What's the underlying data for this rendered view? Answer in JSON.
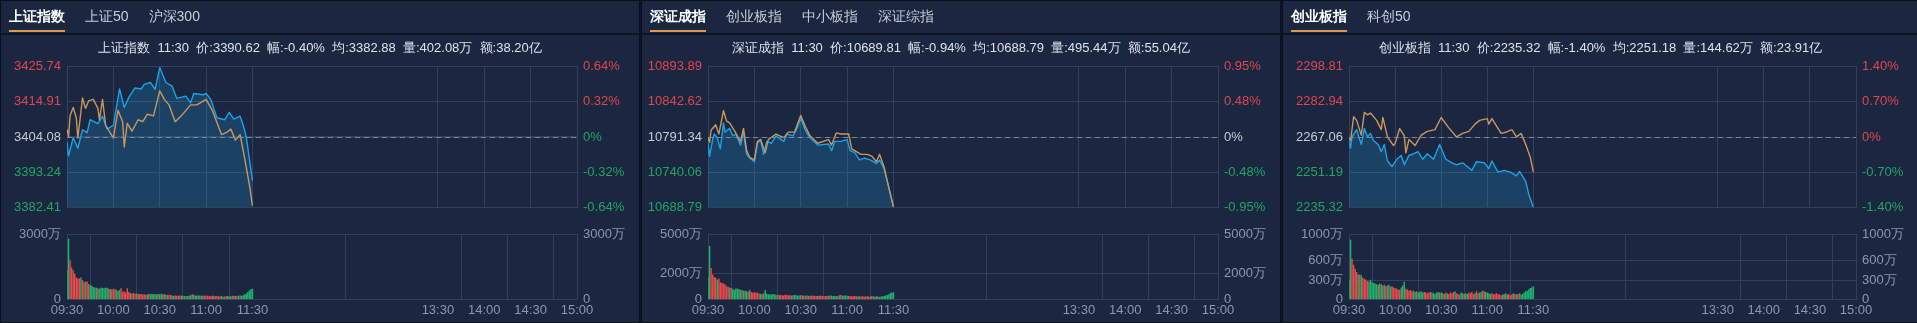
{
  "chart_data": [
    {
      "type": "other",
      "annotations": [
        "上证指数",
        "上证50",
        "沪深300"
      ]
    },
    {
      "type": "line",
      "title": "上证指数  11:30  价:3390.62  幅:-0.40%  均:3382.88  量:402.08万  额:38.20亿",
      "xlim": [
        9.5,
        15
      ],
      "xticks": [
        {
          "value": 9.5,
          "label": null
        },
        {
          "value": 10,
          "label": null
        },
        {
          "value": 10.5,
          "label": null
        },
        {
          "value": 11,
          "label": null
        },
        {
          "value": 11.5,
          "label": null
        },
        {
          "value": 13.5,
          "label": null
        },
        {
          "value": 14,
          "label": null
        },
        {
          "value": 14.5,
          "label": null
        },
        {
          "value": 15,
          "label": null
        }
      ],
      "ylim": [
        3382.41,
        3425.74
      ],
      "yticks": [
        3382.41,
        3393.24,
        3404.08,
        3414.91,
        3425.74
      ],
      "y2lim": [
        -0.64,
        0.64
      ],
      "y2ticks": [
        {
          "value": -0.64,
          "label": "-0.64%"
        },
        {
          "value": -0.32,
          "label": "-0.32%"
        },
        {
          "value": 0,
          "label": "0%"
        },
        {
          "value": 0.32,
          "label": "0.32%"
        },
        {
          "value": 0.64,
          "label": "0.64%"
        }
      ],
      "tick_labels": "y",
      "grid": true,
      "ref_lines": [
        {
          "axis": "y",
          "value": 3404.08,
          "color": "#7d8596",
          "line_style": "dashed"
        }
      ],
      "series": [
        {
          "type": "area",
          "color": "#1ba3e6",
          "x": [
            9.5,
            9.517,
            9.567,
            9.617,
            9.667,
            9.717,
            9.75,
            9.833,
            9.883,
            9.933,
            10,
            10.067,
            10.117,
            10.167,
            10.233,
            10.3,
            10.333,
            10.4,
            10.45,
            10.5,
            10.567,
            10.633,
            10.683,
            10.783,
            10.833,
            10.867,
            10.967,
            11,
            11.05,
            11.117,
            11.2,
            11.25,
            11.3,
            11.367,
            11.4,
            11.433,
            11.467,
            11.5
          ],
          "values": [
            3402.5,
            3398.3,
            3403.9,
            3400.6,
            3406.3,
            3405.4,
            3409.4,
            3408.2,
            3410.5,
            3406.5,
            3407.7,
            3418.9,
            3413.2,
            3416.3,
            3419.2,
            3418.9,
            3420.3,
            3420.9,
            3418.8,
            3425.5,
            3420.9,
            3419.8,
            3416.0,
            3416.7,
            3414.6,
            3417.5,
            3417.1,
            3417.5,
            3415.7,
            3410.0,
            3409.4,
            3411.7,
            3409.6,
            3410.5,
            3407.7,
            3404.2,
            3397.3,
            3390.62
          ]
        },
        {
          "type": "line",
          "color": "#c9975e",
          "x": [
            9.5,
            9.517,
            9.533,
            9.567,
            9.6,
            9.617,
            9.667,
            9.7,
            9.733,
            9.783,
            9.833,
            9.85,
            9.883,
            9.917,
            10,
            10.05,
            10.1,
            10.117,
            10.15,
            10.2,
            10.267,
            10.317,
            10.367,
            10.433,
            10.5,
            10.55,
            10.6,
            10.667,
            10.733,
            10.833,
            10.9,
            11,
            11.067,
            11.167,
            11.217,
            11.267,
            11.317,
            11.367,
            11.417,
            11.467,
            11.5
          ],
          "values": [
            3406.5,
            3404.2,
            3410.6,
            3413.2,
            3410.0,
            3403.7,
            3416.1,
            3412.9,
            3415.2,
            3415.7,
            3412.9,
            3409.4,
            3415.7,
            3407.7,
            3403.7,
            3412.3,
            3408.8,
            3401.0,
            3408.3,
            3405.9,
            3409.4,
            3408.8,
            3411.1,
            3410.6,
            3418.3,
            3415.7,
            3414.0,
            3408.8,
            3410.6,
            3414.0,
            3414.0,
            3415.7,
            3412.3,
            3404.8,
            3405.4,
            3406.5,
            3403.1,
            3404.8,
            3397.3,
            3389.3,
            3382.88
          ]
        }
      ]
    },
    {
      "type": "bar",
      "xlim": [
        9.5,
        15
      ],
      "xticks": [
        {
          "value": 9.5,
          "label": "09:30"
        },
        {
          "value": 10,
          "label": "10:00"
        },
        {
          "value": 10.5,
          "label": "10:30"
        },
        {
          "value": 11,
          "label": "11:00"
        },
        {
          "value": 11.5,
          "label": "11:30"
        },
        {
          "value": 13.5,
          "label": "13:30"
        },
        {
          "value": 14,
          "label": "14:00"
        },
        {
          "value": 14.5,
          "label": "14:30"
        },
        {
          "value": 15,
          "label": "15:00"
        }
      ],
      "ylim": [
        0,
        3000
      ],
      "yticks": [
        0,
        {
          "value": 3000,
          "label": "3000万"
        }
      ],
      "y2lim": [
        0,
        3000
      ],
      "y2ticks": [
        {
          "value": 0,
          "label": "0"
        },
        {
          "value": 3000,
          "label": "3000万"
        }
      ],
      "grid": true,
      "x": [
        9.5,
        9.517,
        9.533,
        9.55,
        9.567,
        9.583,
        9.6,
        9.617,
        9.633,
        9.65,
        9.667,
        9.683,
        9.7,
        9.717,
        9.733,
        9.75,
        9.767,
        9.783,
        9.8,
        9.817,
        9.833,
        9.85,
        9.867,
        9.883,
        9.9,
        9.917,
        9.933,
        9.95,
        9.967,
        9.983,
        10,
        10.017,
        10.033,
        10.05,
        10.067,
        10.083,
        10.1,
        10.117,
        10.133,
        10.15,
        10.167,
        10.183,
        10.2,
        10.217,
        10.233,
        10.25,
        10.267,
        10.283,
        10.3,
        10.317,
        10.333,
        10.35,
        10.367,
        10.383,
        10.4,
        10.417,
        10.433,
        10.45,
        10.467,
        10.483,
        10.5,
        10.517,
        10.533,
        10.55,
        10.567,
        10.583,
        10.6,
        10.617,
        10.633,
        10.65,
        10.667,
        10.683,
        10.7,
        10.717,
        10.733,
        10.75,
        10.767,
        10.783,
        10.8,
        10.817,
        10.833,
        10.85,
        10.867,
        10.883,
        10.9,
        10.917,
        10.933,
        10.95,
        10.967,
        10.983,
        11,
        11.017,
        11.033,
        11.05,
        11.067,
        11.083,
        11.1,
        11.117,
        11.133,
        11.15,
        11.167,
        11.183,
        11.2,
        11.217,
        11.233,
        11.25,
        11.267,
        11.283,
        11.3,
        11.317,
        11.333,
        11.35,
        11.367,
        11.383,
        11.4,
        11.417,
        11.433,
        11.45,
        11.467,
        11.483,
        11.5
      ],
      "values": [
        1340,
        2800,
        1800,
        1470,
        1340,
        1180,
        1000,
        950,
        950,
        1000,
        880,
        780,
        800,
        820,
        700,
        650,
        620,
        560,
        540,
        520,
        500,
        480,
        530,
        520,
        500,
        530,
        520,
        480,
        470,
        450,
        480,
        460,
        430,
        380,
        420,
        500,
        330,
        360,
        290,
        500,
        330,
        280,
        260,
        280,
        250,
        260,
        230,
        240,
        230,
        210,
        220,
        200,
        210,
        250,
        230,
        230,
        220,
        240,
        210,
        230,
        220,
        250,
        210,
        230,
        200,
        190,
        200,
        190,
        170,
        160,
        170,
        150,
        160,
        170,
        160,
        150,
        140,
        130,
        140,
        160,
        180,
        220,
        200,
        170,
        160,
        180,
        160,
        170,
        160,
        150,
        170,
        150,
        140,
        130,
        150,
        160,
        130,
        140,
        130,
        120,
        150,
        110,
        120,
        130,
        140,
        120,
        130,
        150,
        140,
        160,
        130,
        150,
        170,
        160,
        180,
        220,
        260,
        330,
        400,
        470,
        480
      ],
      "colors": [
        "#20b26c",
        "#20b26c",
        "#e84b4b",
        "#e84b4b",
        "#e84b4b",
        "#e84b4b",
        "#e84b4b",
        "#e84b4b",
        "#e84b4b",
        "#20b26c",
        "#e84b4b",
        "#e84b4b",
        "#20b26c",
        "#e84b4b",
        "#e84b4b",
        "#20b26c",
        "#20b26c",
        "#20b26c",
        "#20b26c",
        "#20b26c",
        "#e84b4b",
        "#20b26c",
        "#20b26c",
        "#20b26c",
        "#20b26c",
        "#20b26c",
        "#20b26c",
        "#e84b4b",
        "#20b26c",
        "#e84b4b",
        "#e84b4b",
        "#e84b4b",
        "#20b26c",
        "#20b26c",
        "#20b26c",
        "#e84b4b",
        "#e84b4b",
        "#e84b4b",
        "#e84b4b",
        "#e84b4b",
        "#e84b4b",
        "#e84b4b",
        "#20b26c",
        "#e84b4b",
        "#e84b4b",
        "#e84b4b",
        "#20b26c",
        "#e84b4b",
        "#e84b4b",
        "#e84b4b",
        "#e84b4b",
        "#e84b4b",
        "#20b26c",
        "#e84b4b",
        "#20b26c",
        "#20b26c",
        "#20b26c",
        "#20b26c",
        "#20b26c",
        "#e84b4b",
        "#20b26c",
        "#20b26c",
        "#e84b4b",
        "#20b26c",
        "#20b26c",
        "#e84b4b",
        "#e84b4b",
        "#e84b4b",
        "#20b26c",
        "#20b26c",
        "#e84b4b",
        "#e84b4b",
        "#e84b4b",
        "#e84b4b",
        "#20b26c",
        "#20b26c",
        "#e84b4b",
        "#20b26c",
        "#20b26c",
        "#20b26c",
        "#20b26c",
        "#e84b4b",
        "#20b26c",
        "#20b26c",
        "#20b26c",
        "#e84b4b",
        "#20b26c",
        "#20b26c",
        "#20b26c",
        "#e84b4b",
        "#e84b4b",
        "#e84b4b",
        "#e84b4b",
        "#e84b4b",
        "#e84b4b",
        "#20b26c",
        "#e84b4b",
        "#e84b4b",
        "#e84b4b",
        "#e84b4b",
        "#20b26c",
        "#20b26c",
        "#e84b4b",
        "#e84b4b",
        "#20b26c",
        "#20b26c",
        "#20b26c",
        "#e84b4b",
        "#e84b4b",
        "#20b26c",
        "#e84b4b",
        "#20b26c",
        "#e84b4b",
        "#20b26c",
        "#20b26c",
        "#20b26c",
        "#20b26c",
        "#20b26c",
        "#20b26c",
        "#20b26c",
        "#20b26c"
      ]
    },
    {
      "type": "other",
      "annotations": [
        "深证成指",
        "创业板指",
        "中小板指",
        "深证综指"
      ]
    },
    {
      "type": "line",
      "title": "深证成指  11:30  价:10689.81  幅:-0.94%  均:10688.79  量:495.44万  额:55.04亿",
      "xlim": [
        9.5,
        15
      ],
      "xticks": [
        {
          "value": 9.5,
          "label": null
        },
        {
          "value": 10,
          "label": null
        },
        {
          "value": 10.5,
          "label": null
        },
        {
          "value": 11,
          "label": null
        },
        {
          "value": 11.5,
          "label": null
        },
        {
          "value": 13.5,
          "label": null
        },
        {
          "value": 14,
          "label": null
        },
        {
          "value": 14.5,
          "label": null
        },
        {
          "value": 15,
          "label": null
        }
      ],
      "ylim": [
        10688.79,
        10893.89
      ],
      "yticks": [
        10688.79,
        10740.06,
        10791.34,
        10842.62,
        10893.89
      ],
      "y2lim": [
        -0.95,
        0.95
      ],
      "y2ticks": [
        {
          "value": -0.95,
          "label": "-0.95%"
        },
        {
          "value": -0.48,
          "label": "-0.48%"
        },
        {
          "value": 0,
          "label": "0%"
        },
        {
          "value": 0.48,
          "label": "0.48%"
        },
        {
          "value": 0.95,
          "label": "0.95%"
        }
      ],
      "tick_labels": "y",
      "grid": true,
      "ref_lines": [
        {
          "axis": "y",
          "value": 10791.34,
          "color": "#7d8596",
          "line_style": "dashed"
        }
      ],
      "series": [
        {
          "type": "area",
          "color": "#1ba3e6",
          "x": [
            9.5,
            9.517,
            9.55,
            9.567,
            9.6,
            9.633,
            9.667,
            9.683,
            9.733,
            9.767,
            9.8,
            9.85,
            9.883,
            9.917,
            9.95,
            10,
            10.033,
            10.067,
            10.1,
            10.133,
            10.183,
            10.233,
            10.317,
            10.35,
            10.417,
            10.467,
            10.5,
            10.55,
            10.6,
            10.683,
            10.8,
            10.833,
            10.867,
            10.933,
            11,
            11.033,
            11.083,
            11.133,
            11.183,
            11.25,
            11.317,
            11.35,
            11.4,
            11.45,
            11.5
          ],
          "values": [
            10782.2,
            10763.3,
            10787.6,
            10795.7,
            10790.3,
            10774.1,
            10811.9,
            10798.4,
            10804.0,
            10793.0,
            10795.7,
            10779.5,
            10798.4,
            10766.0,
            10760.6,
            10755.2,
            10782.2,
            10787.6,
            10766.0,
            10784.9,
            10782.2,
            10793.0,
            10784.9,
            10795.7,
            10793.0,
            10806.5,
            10818.9,
            10801.1,
            10790.3,
            10779.5,
            10781.1,
            10771.4,
            10784.9,
            10784.9,
            10787.6,
            10771.4,
            10768.7,
            10757.9,
            10760.6,
            10757.9,
            10752.5,
            10757.9,
            10744.4,
            10717.4,
            10689.81
          ]
        },
        {
          "type": "line",
          "color": "#c9975e",
          "x": [
            9.5,
            9.517,
            9.533,
            9.583,
            9.617,
            9.667,
            9.7,
            9.733,
            9.783,
            9.85,
            9.883,
            9.917,
            9.95,
            10,
            10.033,
            10.067,
            10.117,
            10.15,
            10.233,
            10.317,
            10.367,
            10.433,
            10.5,
            10.55,
            10.6,
            10.683,
            10.8,
            10.833,
            10.883,
            10.933,
            11.017,
            11.05,
            11.083,
            11.15,
            11.217,
            11.267,
            11.317,
            11.35,
            11.4,
            11.45,
            11.5
          ],
          "values": [
            10790.3,
            10783.3,
            10801.1,
            10809.2,
            10795.7,
            10829.7,
            10814.6,
            10811.9,
            10801.1,
            10784.9,
            10803.8,
            10771.4,
            10761.7,
            10757.9,
            10784.9,
            10787.6,
            10768.7,
            10787.6,
            10795.7,
            10790.3,
            10798.4,
            10798.4,
            10822.7,
            10806.5,
            10793.0,
            10782.2,
            10787.6,
            10779.5,
            10797.3,
            10795.7,
            10795.7,
            10774.1,
            10771.4,
            10766.0,
            10766.0,
            10763.3,
            10755.2,
            10766.0,
            10747.1,
            10717.4,
            10688.79
          ]
        }
      ]
    },
    {
      "type": "bar",
      "xlim": [
        9.5,
        15
      ],
      "xticks": [
        {
          "value": 9.5,
          "label": "09:30"
        },
        {
          "value": 10,
          "label": "10:00"
        },
        {
          "value": 10.5,
          "label": "10:30"
        },
        {
          "value": 11,
          "label": "11:00"
        },
        {
          "value": 11.5,
          "label": "11:30"
        },
        {
          "value": 13.5,
          "label": "13:30"
        },
        {
          "value": 14,
          "label": "14:00"
        },
        {
          "value": 14.5,
          "label": "14:30"
        },
        {
          "value": 15,
          "label": "15:00"
        }
      ],
      "ylim": [
        0,
        5000
      ],
      "yticks": [
        0,
        {
          "value": 2000,
          "label": "2000万"
        },
        {
          "value": 5000,
          "label": "5000万"
        }
      ],
      "y2lim": [
        0,
        5000
      ],
      "y2ticks": [
        {
          "value": 0,
          "label": "0"
        },
        {
          "value": 2000,
          "label": "2000万"
        },
        {
          "value": 5000,
          "label": "5000万"
        }
      ],
      "grid": true,
      "x": [
        9.5,
        9.517,
        9.533,
        9.55,
        9.567,
        9.583,
        9.6,
        9.617,
        9.633,
        9.65,
        9.667,
        9.683,
        9.7,
        9.717,
        9.733,
        9.75,
        9.767,
        9.783,
        9.8,
        9.817,
        9.833,
        9.85,
        9.867,
        9.883,
        9.9,
        9.917,
        9.933,
        9.95,
        9.967,
        9.983,
        10,
        10.017,
        10.033,
        10.05,
        10.067,
        10.083,
        10.1,
        10.117,
        10.133,
        10.15,
        10.167,
        10.183,
        10.2,
        10.217,
        10.233,
        10.25,
        10.267,
        10.283,
        10.3,
        10.317,
        10.333,
        10.35,
        10.367,
        10.383,
        10.4,
        10.417,
        10.433,
        10.45,
        10.467,
        10.483,
        10.5,
        10.517,
        10.533,
        10.55,
        10.567,
        10.583,
        10.6,
        10.617,
        10.633,
        10.65,
        10.667,
        10.683,
        10.7,
        10.717,
        10.733,
        10.75,
        10.767,
        10.783,
        10.8,
        10.817,
        10.833,
        10.85,
        10.867,
        10.883,
        10.9,
        10.917,
        10.933,
        10.95,
        10.967,
        10.983,
        11,
        11.017,
        11.033,
        11.05,
        11.067,
        11.083,
        11.1,
        11.117,
        11.133,
        11.15,
        11.167,
        11.183,
        11.2,
        11.217,
        11.233,
        11.25,
        11.267,
        11.283,
        11.3,
        11.317,
        11.333,
        11.35,
        11.367,
        11.383,
        11.4,
        11.417,
        11.433,
        11.45,
        11.467,
        11.483,
        11.5
      ],
      "values": [
        1700,
        4100,
        2400,
        1900,
        1700,
        1650,
        1500,
        1600,
        1300,
        1250,
        1200,
        1150,
        1000,
        950,
        900,
        850,
        800,
        700,
        820,
        800,
        780,
        720,
        700,
        650,
        640,
        600,
        560,
        700,
        540,
        480,
        520,
        500,
        480,
        440,
        420,
        380,
        450,
        700,
        420,
        380,
        350,
        360,
        400,
        380,
        320,
        340,
        300,
        320,
        300,
        280,
        330,
        320,
        300,
        290,
        280,
        300,
        310,
        290,
        280,
        270,
        300,
        290,
        260,
        280,
        270,
        250,
        240,
        280,
        260,
        250,
        240,
        230,
        260,
        250,
        230,
        220,
        240,
        230,
        260,
        270,
        250,
        240,
        230,
        220,
        240,
        300,
        320,
        280,
        260,
        300,
        260,
        240,
        230,
        220,
        210,
        230,
        220,
        200,
        210,
        190,
        220,
        200,
        190,
        210,
        200,
        180,
        230,
        200,
        190,
        210,
        190,
        180,
        200,
        220,
        240,
        280,
        320,
        380,
        450,
        500,
        520
      ],
      "colors": [
        "#20b26c",
        "#20b26c",
        "#e84b4b",
        "#e84b4b",
        "#e84b4b",
        "#e84b4b",
        "#20b26c",
        "#e84b4b",
        "#e84b4b",
        "#e84b4b",
        "#e84b4b",
        "#e84b4b",
        "#e84b4b",
        "#e84b4b",
        "#20b26c",
        "#e84b4b",
        "#20b26c",
        "#20b26c",
        "#20b26c",
        "#20b26c",
        "#20b26c",
        "#20b26c",
        "#e84b4b",
        "#20b26c",
        "#20b26c",
        "#20b26c",
        "#e84b4b",
        "#20b26c",
        "#e84b4b",
        "#e84b4b",
        "#e84b4b",
        "#e84b4b",
        "#e84b4b",
        "#e84b4b",
        "#20b26c",
        "#20b26c",
        "#e84b4b",
        "#20b26c",
        "#20b26c",
        "#20b26c",
        "#20b26c",
        "#20b26c",
        "#20b26c",
        "#20b26c",
        "#20b26c",
        "#e84b4b",
        "#20b26c",
        "#e84b4b",
        "#e84b4b",
        "#e84b4b",
        "#e84b4b",
        "#e84b4b",
        "#e84b4b",
        "#e84b4b",
        "#e84b4b",
        "#20b26c",
        "#20b26c",
        "#20b26c",
        "#20b26c",
        "#20b26c",
        "#e84b4b",
        "#20b26c",
        "#e84b4b",
        "#e84b4b",
        "#20b26c",
        "#20b26c",
        "#e84b4b",
        "#e84b4b",
        "#e84b4b",
        "#e84b4b",
        "#e84b4b",
        "#e84b4b",
        "#20b26c",
        "#e84b4b",
        "#e84b4b",
        "#e84b4b",
        "#e84b4b",
        "#e84b4b",
        "#20b26c",
        "#e84b4b",
        "#20b26c",
        "#20b26c",
        "#20b26c",
        "#20b26c",
        "#20b26c",
        "#e84b4b",
        "#e84b4b",
        "#20b26c",
        "#20b26c",
        "#20b26c",
        "#20b26c",
        "#e84b4b",
        "#e84b4b",
        "#e84b4b",
        "#e84b4b",
        "#e84b4b",
        "#e84b4b",
        "#20b26c",
        "#20b26c",
        "#e84b4b",
        "#e84b4b",
        "#e84b4b",
        "#20b26c",
        "#e84b4b",
        "#e84b4b",
        "#e84b4b",
        "#20b26c",
        "#e84b4b",
        "#20b26c",
        "#20b26c",
        "#20b26c",
        "#e84b4b",
        "#20b26c",
        "#20b26c",
        "#20b26c",
        "#20b26c",
        "#20b26c",
        "#20b26c",
        "#20b26c",
        "#20b26c",
        "#20b26c"
      ]
    },
    {
      "type": "other",
      "annotations": [
        "创业板指",
        "科创50"
      ]
    },
    {
      "type": "line",
      "title": "创业板指  11:30  价:2235.32  幅:-1.40%  均:2251.18  量:144.62万  额:23.91亿",
      "xlim": [
        9.5,
        15
      ],
      "xticks": [
        {
          "value": 9.5,
          "label": null
        },
        {
          "value": 10,
          "label": null
        },
        {
          "value": 10.5,
          "label": null
        },
        {
          "value": 11,
          "label": null
        },
        {
          "value": 11.5,
          "label": null
        },
        {
          "value": 13.5,
          "label": null
        },
        {
          "value": 14,
          "label": null
        },
        {
          "value": 14.5,
          "label": null
        },
        {
          "value": 15,
          "label": null
        }
      ],
      "ylim": [
        2235.32,
        2298.81
      ],
      "yticks": [
        2235.32,
        2251.19,
        2267.06,
        2282.94,
        2298.81
      ],
      "y2lim": [
        -1.4,
        1.4
      ],
      "y2ticks": [
        {
          "value": -1.4,
          "label": "-1.40%"
        },
        {
          "value": -0.7,
          "label": "-0.70%"
        },
        {
          "value": 0,
          "label": "0%"
        },
        {
          "value": 0.7,
          "label": "0.70%"
        },
        {
          "value": 1.4,
          "label": "1.40%"
        }
      ],
      "tick_labels": "y",
      "grid": true,
      "ref_lines": [
        {
          "axis": "y",
          "value": 2267.06,
          "color": "#7d8596",
          "line_style": "dashed"
        }
      ],
      "series": [
        {
          "type": "area",
          "color": "#1ba3e6",
          "x": [
            9.5,
            9.517,
            9.533,
            9.583,
            9.633,
            9.667,
            9.7,
            9.733,
            9.767,
            9.817,
            9.85,
            9.883,
            9.917,
            9.967,
            10.017,
            10.067,
            10.1,
            10.15,
            10.2,
            10.25,
            10.3,
            10.35,
            10.417,
            10.483,
            10.55,
            10.617,
            10.667,
            10.733,
            10.833,
            10.883,
            10.967,
            11.017,
            11.05,
            11.117,
            11.183,
            11.25,
            11.317,
            11.35,
            11.417,
            11.45,
            11.5
          ],
          "values": [
            2265.4,
            2262.0,
            2267.1,
            2270.4,
            2263.7,
            2270.9,
            2267.1,
            2268.7,
            2265.4,
            2263.7,
            2260.4,
            2263.7,
            2256.2,
            2253.7,
            2257.0,
            2258.7,
            2254.5,
            2258.7,
            2259.5,
            2260.4,
            2257.0,
            2259.5,
            2257.0,
            2263.7,
            2257.0,
            2255.4,
            2254.5,
            2255.4,
            2252.0,
            2255.9,
            2255.4,
            2252.8,
            2256.2,
            2251.2,
            2252.0,
            2251.2,
            2249.5,
            2251.5,
            2247.0,
            2241.2,
            2235.32
          ]
        },
        {
          "type": "line",
          "color": "#c9975e",
          "x": [
            9.5,
            9.517,
            9.55,
            9.583,
            9.633,
            9.667,
            9.7,
            9.733,
            9.8,
            9.85,
            9.867,
            9.917,
            9.983,
            10,
            10.05,
            10.1,
            10.117,
            10.15,
            10.217,
            10.283,
            10.35,
            10.433,
            10.5,
            10.583,
            10.667,
            10.733,
            10.8,
            10.867,
            10.917,
            11,
            11.017,
            11.05,
            11.15,
            11.2,
            11.267,
            11.317,
            11.367,
            11.417,
            11.467,
            11.5
          ],
          "values": [
            2267.1,
            2265.4,
            2276.2,
            2274.6,
            2267.9,
            2278.2,
            2277.1,
            2277.9,
            2274.6,
            2270.4,
            2275.9,
            2267.1,
            2263.2,
            2264.2,
            2270.9,
            2267.6,
            2259.9,
            2265.9,
            2263.2,
            2267.9,
            2269.6,
            2270.4,
            2275.9,
            2271.2,
            2267.1,
            2268.7,
            2269.6,
            2272.9,
            2274.6,
            2275.4,
            2272.9,
            2275.4,
            2268.7,
            2269.2,
            2270.4,
            2267.1,
            2268.7,
            2263.7,
            2257.9,
            2251.18
          ]
        }
      ]
    },
    {
      "type": "bar",
      "xlim": [
        9.5,
        15
      ],
      "xticks": [
        {
          "value": 9.5,
          "label": "09:30"
        },
        {
          "value": 10,
          "label": "10:00"
        },
        {
          "value": 10.5,
          "label": "10:30"
        },
        {
          "value": 11,
          "label": "11:00"
        },
        {
          "value": 11.5,
          "label": "11:30"
        },
        {
          "value": 13.5,
          "label": "13:30"
        },
        {
          "value": 14,
          "label": "14:00"
        },
        {
          "value": 14.5,
          "label": "14:30"
        },
        {
          "value": 15,
          "label": "15:00"
        }
      ],
      "ylim": [
        0,
        1000
      ],
      "yticks": [
        0,
        {
          "value": 300,
          "label": "300万"
        },
        {
          "value": 600,
          "label": "600万"
        },
        {
          "value": 1000,
          "label": "1000万"
        }
      ],
      "y2lim": [
        0,
        1000
      ],
      "y2ticks": [
        {
          "value": 0,
          "label": "0"
        },
        {
          "value": 300,
          "label": "300万"
        },
        {
          "value": 600,
          "label": "600万"
        },
        {
          "value": 1000,
          "label": "1000万"
        }
      ],
      "grid": true,
      "x": [
        9.5,
        9.517,
        9.533,
        9.55,
        9.567,
        9.583,
        9.6,
        9.617,
        9.633,
        9.65,
        9.667,
        9.683,
        9.7,
        9.717,
        9.733,
        9.75,
        9.767,
        9.783,
        9.8,
        9.817,
        9.833,
        9.85,
        9.867,
        9.883,
        9.9,
        9.917,
        9.933,
        9.95,
        9.967,
        9.983,
        10,
        10.017,
        10.033,
        10.05,
        10.067,
        10.083,
        10.1,
        10.117,
        10.133,
        10.15,
        10.167,
        10.183,
        10.2,
        10.217,
        10.233,
        10.25,
        10.267,
        10.283,
        10.3,
        10.317,
        10.333,
        10.35,
        10.367,
        10.383,
        10.4,
        10.417,
        10.433,
        10.45,
        10.467,
        10.483,
        10.5,
        10.517,
        10.533,
        10.55,
        10.567,
        10.583,
        10.6,
        10.617,
        10.633,
        10.65,
        10.667,
        10.683,
        10.7,
        10.717,
        10.733,
        10.75,
        10.767,
        10.783,
        10.8,
        10.817,
        10.833,
        10.85,
        10.867,
        10.883,
        10.9,
        10.917,
        10.933,
        10.95,
        10.967,
        10.983,
        11,
        11.017,
        11.033,
        11.05,
        11.067,
        11.083,
        11.1,
        11.117,
        11.133,
        11.15,
        11.167,
        11.183,
        11.2,
        11.217,
        11.233,
        11.25,
        11.267,
        11.283,
        11.3,
        11.317,
        11.333,
        11.35,
        11.367,
        11.383,
        11.4,
        11.417,
        11.433,
        11.45,
        11.467,
        11.483,
        11.5
      ],
      "values": [
        290,
        920,
        620,
        530,
        470,
        420,
        380,
        380,
        370,
        330,
        310,
        300,
        280,
        270,
        300,
        260,
        250,
        240,
        230,
        220,
        240,
        230,
        210,
        220,
        200,
        210,
        220,
        190,
        200,
        180,
        170,
        160,
        150,
        140,
        180,
        210,
        270,
        160,
        150,
        130,
        140,
        120,
        130,
        110,
        120,
        100,
        110,
        120,
        100,
        110,
        100,
        90,
        100,
        110,
        100,
        90,
        80,
        100,
        110,
        100,
        100,
        90,
        80,
        100,
        90,
        80,
        100,
        90,
        110,
        120,
        90,
        80,
        70,
        100,
        90,
        80,
        90,
        80,
        100,
        90,
        110,
        80,
        90,
        120,
        90,
        100,
        110,
        130,
        120,
        110,
        100,
        90,
        80,
        90,
        70,
        80,
        90,
        80,
        70,
        60,
        70,
        80,
        90,
        70,
        80,
        60,
        70,
        90,
        80,
        70,
        80,
        90,
        70,
        80,
        100,
        120,
        130,
        150,
        170,
        180,
        200
      ],
      "colors": [
        "#20b26c",
        "#20b26c",
        "#e84b4b",
        "#e84b4b",
        "#e84b4b",
        "#e84b4b",
        "#20b26c",
        "#e84b4b",
        "#20b26c",
        "#e84b4b",
        "#e84b4b",
        "#e84b4b",
        "#e84b4b",
        "#20b26c",
        "#20b26c",
        "#20b26c",
        "#20b26c",
        "#20b26c",
        "#20b26c",
        "#20b26c",
        "#e84b4b",
        "#20b26c",
        "#20b26c",
        "#e84b4b",
        "#20b26c",
        "#e84b4b",
        "#20b26c",
        "#20b26c",
        "#e84b4b",
        "#e84b4b",
        "#e84b4b",
        "#e84b4b",
        "#e84b4b",
        "#e84b4b",
        "#20b26c",
        "#20b26c",
        "#20b26c",
        "#e84b4b",
        "#e84b4b",
        "#e84b4b",
        "#e84b4b",
        "#e84b4b",
        "#20b26c",
        "#20b26c",
        "#e84b4b",
        "#20b26c",
        "#20b26c",
        "#20b26c",
        "#20b26c",
        "#e84b4b",
        "#e84b4b",
        "#e84b4b",
        "#e84b4b",
        "#e84b4b",
        "#20b26c",
        "#20b26c",
        "#20b26c",
        "#20b26c",
        "#20b26c",
        "#e84b4b",
        "#20b26c",
        "#20b26c",
        "#e84b4b",
        "#e84b4b",
        "#20b26c",
        "#e84b4b",
        "#e84b4b",
        "#e84b4b",
        "#e84b4b",
        "#20b26c",
        "#e84b4b",
        "#e84b4b",
        "#e84b4b",
        "#20b26c",
        "#20b26c",
        "#e84b4b",
        "#20b26c",
        "#20b26c",
        "#e84b4b",
        "#e84b4b",
        "#e84b4b",
        "#e84b4b",
        "#20b26c",
        "#e84b4b",
        "#e84b4b",
        "#20b26c",
        "#20b26c",
        "#e84b4b",
        "#e84b4b",
        "#20b26c",
        "#20b26c",
        "#20b26c",
        "#20b26c",
        "#e84b4b",
        "#e84b4b",
        "#e84b4b",
        "#e84b4b",
        "#e84b4b",
        "#e84b4b",
        "#e84b4b",
        "#20b26c",
        "#20b26c",
        "#e84b4b",
        "#20b26c",
        "#e84b4b",
        "#e84b4b",
        "#e84b4b",
        "#20b26c",
        "#e84b4b",
        "#e84b4b",
        "#20b26c",
        "#e84b4b",
        "#20b26c",
        "#20b26c",
        "#20b26c",
        "#20b26c",
        "#20b26c",
        "#20b26c",
        "#20b26c",
        "#20b26c",
        "#20b26c"
      ]
    }
  ]
}
